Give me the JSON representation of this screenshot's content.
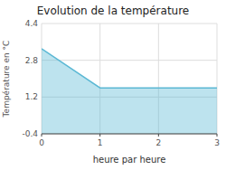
{
  "chart_data": {
    "type": "area",
    "title": "Evolution de la température",
    "x_label": "heure par heure",
    "y_label": "Température en °C",
    "x": [
      0,
      1,
      3
    ],
    "values": [
      3.3,
      1.6,
      1.6
    ],
    "color": "#5bb8d4",
    "xlim": [
      0,
      3
    ],
    "ylim": [
      -0.4,
      4.4
    ],
    "xticks": [
      0,
      1,
      2,
      3
    ],
    "yticks": [
      -0.4,
      1.2,
      2.8,
      4.4
    ],
    "grid": true
  }
}
